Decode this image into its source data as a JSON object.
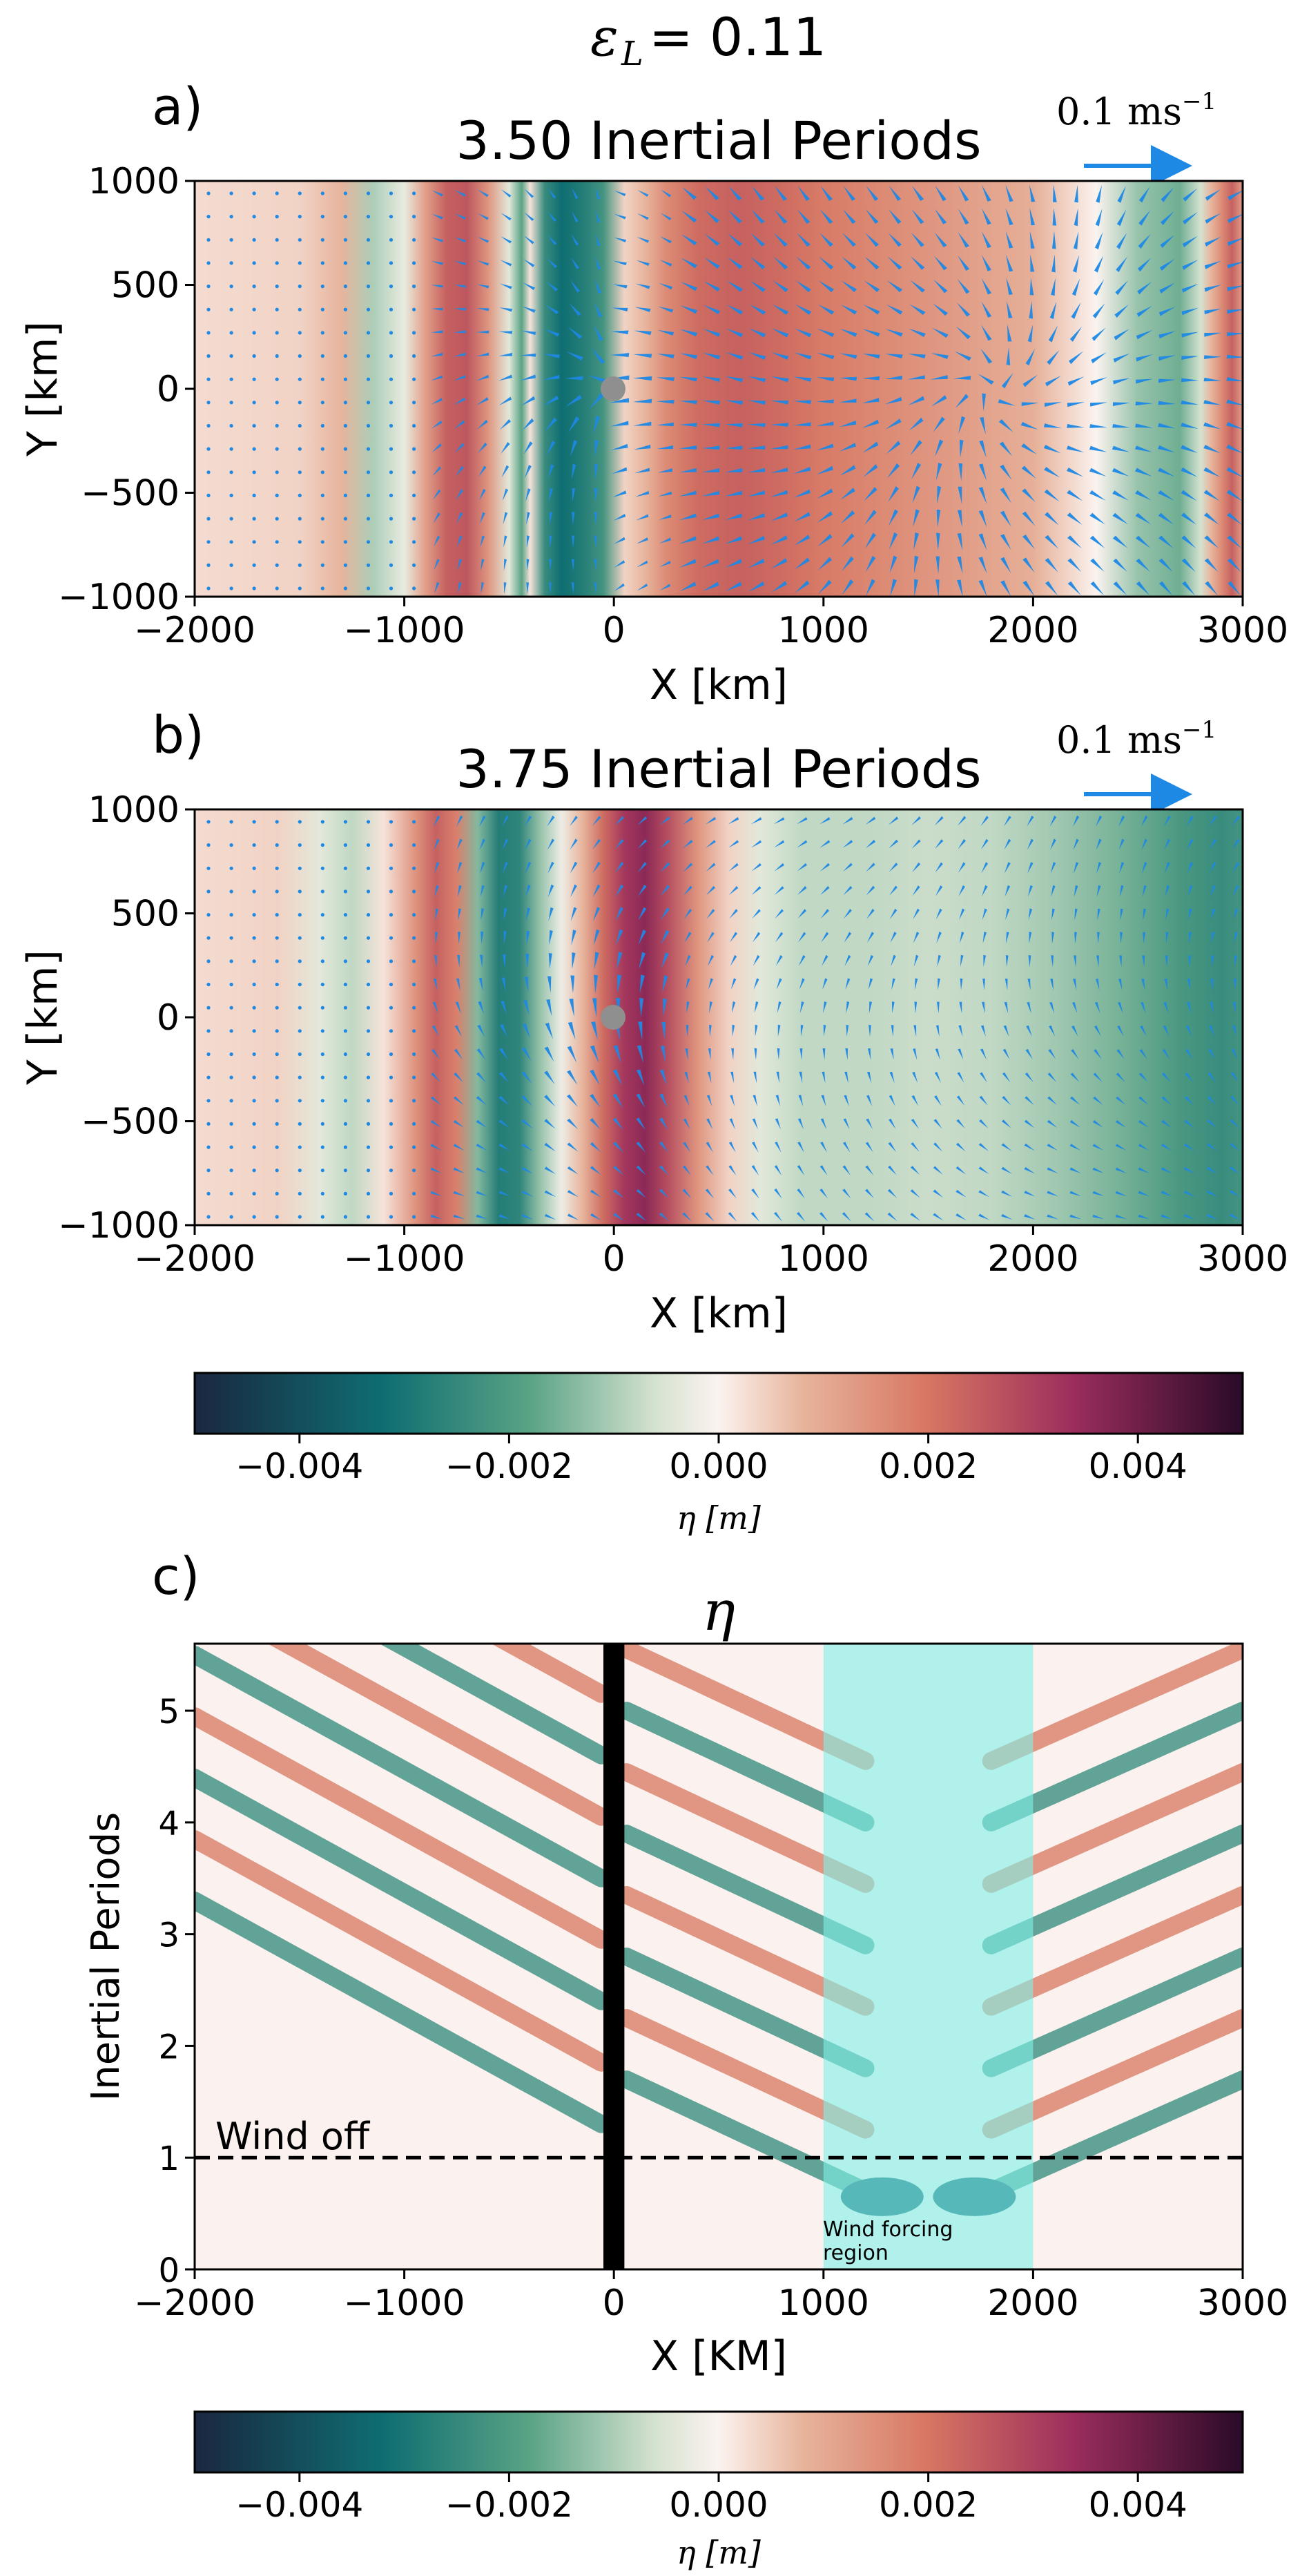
{
  "figure": {
    "suptitle": "ε",
    "suptitle_sub": "L",
    "suptitle_rest": "= 0.11"
  },
  "chart_data": [
    {
      "type": "heatmap",
      "panel_label": "a)",
      "title": "3.50 Inertial Periods",
      "xlabel": "X [km]",
      "ylabel": "Y [km]",
      "xlim": [
        -2000,
        3000
      ],
      "ylim": [
        -1000,
        1000
      ],
      "xticks": [
        -2000,
        -1000,
        0,
        1000,
        2000,
        3000
      ],
      "yticks": [
        -1000,
        -500,
        0,
        500,
        1000
      ],
      "xtick_labels": [
        "−2000",
        "−1000",
        "0",
        "1000",
        "2000",
        "3000"
      ],
      "ytick_labels": [
        "−1000",
        "−500",
        "0",
        "500",
        "1000"
      ],
      "quiver_key_label": "0.1 ms",
      "quiver_key_sup": "−1",
      "quiver_key_value": 0.1,
      "eta_profile": {
        "x": [
          -2000,
          -1500,
          -1300,
          -1150,
          -1000,
          -900,
          -800,
          -700,
          -600,
          -500,
          -440,
          -400,
          -330,
          -250,
          -150,
          -50,
          50,
          150,
          250,
          400,
          600,
          800,
          1000,
          1300,
          1600,
          2000,
          2300,
          2500,
          2700,
          2800,
          2850,
          2900,
          2950,
          3000
        ],
        "eta": [
          0.0003,
          0.0004,
          0.0008,
          -0.001,
          -0.0003,
          0.0012,
          0.0024,
          0.0026,
          0.0014,
          -0.0004,
          -0.0018,
          0.0002,
          -0.0024,
          -0.0032,
          -0.0028,
          -0.0022,
          0.0004,
          0.0008,
          0.0016,
          0.0022,
          0.0024,
          0.0022,
          0.0019,
          0.0016,
          0.0013,
          0.0009,
          0.0,
          -0.0012,
          -0.0016,
          -0.0006,
          0.0008,
          0.0016,
          0.0024,
          0.0012
        ]
      },
      "island": {
        "x": 0,
        "y": 0
      }
    },
    {
      "type": "heatmap",
      "panel_label": "b)",
      "title": "3.75 Inertial Periods",
      "xlabel": "X [km]",
      "ylabel": "Y [km]",
      "xlim": [
        -2000,
        3000
      ],
      "ylim": [
        -1000,
        1000
      ],
      "xticks": [
        -2000,
        -1000,
        0,
        1000,
        2000,
        3000
      ],
      "yticks": [
        -1000,
        -500,
        0,
        500,
        1000
      ],
      "xtick_labels": [
        "−2000",
        "−1000",
        "0",
        "1000",
        "2000",
        "3000"
      ],
      "ytick_labels": [
        "−1000",
        "−500",
        "0",
        "500",
        "1000"
      ],
      "quiver_key_label": "0.1 ms",
      "quiver_key_sup": "−1",
      "quiver_key_value": 0.1,
      "eta_profile": {
        "x": [
          -2000,
          -1600,
          -1400,
          -1250,
          -1100,
          -950,
          -850,
          -750,
          -650,
          -550,
          -450,
          -350,
          -250,
          -150,
          -50,
          50,
          150,
          250,
          400,
          550,
          700,
          900,
          1200,
          1500,
          1800,
          2100,
          2400,
          2700,
          2900,
          3000
        ],
        "eta": [
          0.0003,
          0.0004,
          -0.0004,
          -0.0008,
          0.0002,
          0.0014,
          0.0024,
          0.0018,
          -0.0014,
          -0.0028,
          -0.0026,
          -0.0012,
          -0.0002,
          0.0008,
          0.0022,
          0.0032,
          0.0036,
          0.0028,
          0.0014,
          0.0004,
          -0.0004,
          -0.0008,
          -0.0008,
          -0.0007,
          -0.0008,
          -0.0011,
          -0.0015,
          -0.0021,
          -0.0024,
          -0.0022
        ]
      },
      "island": {
        "x": 0,
        "y": 0
      }
    },
    {
      "type": "heatmap",
      "panel_label": "c)",
      "title": "η",
      "xlabel": "X [KM]",
      "ylabel": "Inertial Periods",
      "xlim": [
        -2000,
        3000
      ],
      "ylim": [
        0,
        5.6
      ],
      "xticks": [
        -2000,
        -1000,
        0,
        1000,
        2000,
        3000
      ],
      "yticks": [
        0,
        1,
        2,
        3,
        4,
        5
      ],
      "xtick_labels": [
        "−2000",
        "−1000",
        "0",
        "1000",
        "2000",
        "3000"
      ],
      "ytick_labels": [
        "0",
        "1",
        "2",
        "3",
        "4",
        "5"
      ],
      "wind_off_label": "Wind off",
      "wind_off_t": 1,
      "wind_region_label_1": "Wind forcing",
      "wind_region_label_2": "region",
      "wind_region": [
        1000,
        2000
      ],
      "island_band": [
        -50,
        50
      ]
    }
  ],
  "colorbars": [
    {
      "vmin": -0.005,
      "vmax": 0.005,
      "ticks": [
        -0.004,
        -0.002,
        0.0,
        0.002,
        0.004
      ],
      "tick_labels": [
        "−0.004",
        "−0.002",
        "0.000",
        "0.002",
        "0.004"
      ],
      "label": "η [m]"
    },
    {
      "vmin": -0.005,
      "vmax": 0.005,
      "ticks": [
        -0.004,
        -0.002,
        0.0,
        0.002,
        0.004
      ],
      "tick_labels": [
        "−0.004",
        "−0.002",
        "0.000",
        "0.002",
        "0.004"
      ],
      "label": "η [m]"
    }
  ],
  "colors": {
    "arrow": "#1e88e5",
    "wind_region": "#7ff3ea",
    "island": "#000000",
    "colormap": [
      "#1a2740",
      "#0e6e72",
      "#5aa385",
      "#d5e2d0",
      "#fbf3ef",
      "#e7b49c",
      "#d77662",
      "#9a2d5c",
      "#2a0a28"
    ]
  }
}
